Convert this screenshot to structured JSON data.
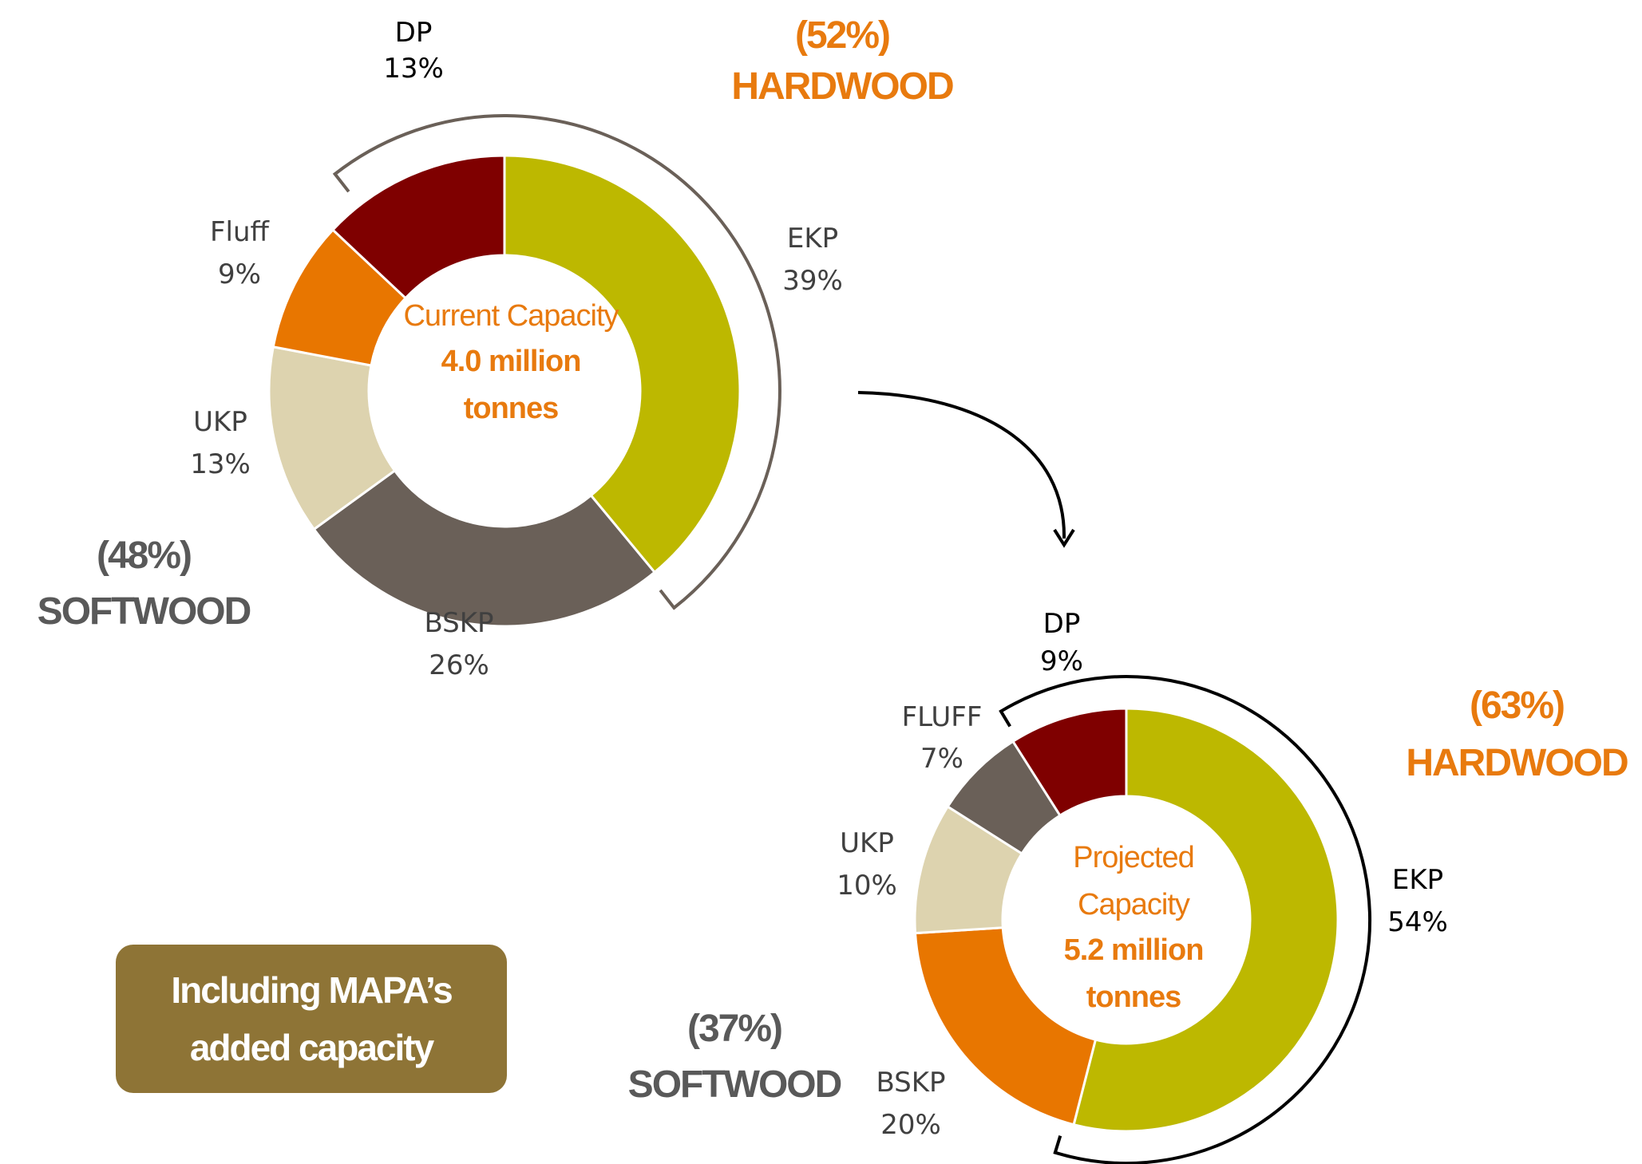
{
  "chart_data": [
    {
      "type": "pie",
      "variant": "donut",
      "center_text": [
        "Current Capacity",
        "4.0 million",
        "tonnes"
      ],
      "slices": [
        {
          "label": "EKP",
          "value": 39,
          "value_label": "39%",
          "color": "#BDB800"
        },
        {
          "label": "BSKP",
          "value": 26,
          "value_label": "26%",
          "color": "#6A6058"
        },
        {
          "label": "UKP",
          "value": 13,
          "value_label": "13%",
          "color": "#DDD3AF"
        },
        {
          "label": "Fluff",
          "value": 9,
          "value_label": "9%",
          "color": "#E87600"
        },
        {
          "label": "DP",
          "value": 13,
          "value_label": "13%",
          "color": "#7F0000"
        }
      ],
      "groups": [
        {
          "name": "HARDWOOD",
          "percent_label": "(52%)",
          "color": "#E87A0E"
        },
        {
          "name": "SOFTWOOD",
          "percent_label": "(48%)",
          "color": "#595959"
        }
      ]
    },
    {
      "type": "pie",
      "variant": "donut",
      "center_text": [
        "Projected",
        "Capacity",
        "5.2 million",
        "tonnes"
      ],
      "slices": [
        {
          "label": "EKP",
          "value": 54,
          "value_label": "54%",
          "color": "#BDB800"
        },
        {
          "label": "BSKP",
          "value": 20,
          "value_label": "20%",
          "color": "#E87600"
        },
        {
          "label": "UKP",
          "value": 10,
          "value_label": "10%",
          "color": "#DDD3AF"
        },
        {
          "label": "FLUFF",
          "value": 7,
          "value_label": "7%",
          "color": "#6A6058"
        },
        {
          "label": "DP",
          "value": 9,
          "value_label": "9%",
          "color": "#7F0000"
        }
      ],
      "groups": [
        {
          "name": "HARDWOOD",
          "percent_label": "(63%)",
          "color": "#E87A0E"
        },
        {
          "name": "SOFTWOOD",
          "percent_label": "(37%)",
          "color": "#595959"
        }
      ]
    }
  ],
  "callout": {
    "lines": [
      "Including MAPA’s",
      "added capacity"
    ],
    "background": "#8E7436"
  },
  "colors": {
    "accent": "#E87A0E",
    "neutral": "#595959",
    "bracket_current": "#6A6058",
    "bracket_projected": "#000000"
  }
}
